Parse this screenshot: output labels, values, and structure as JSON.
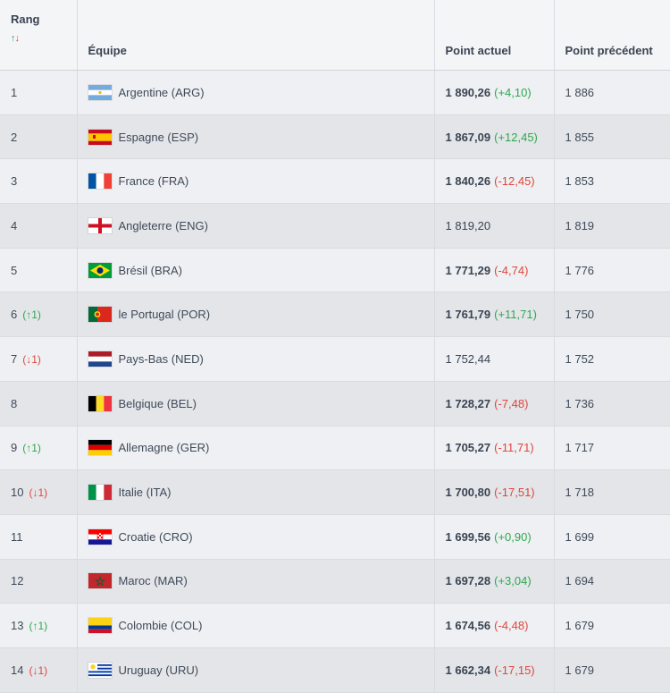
{
  "header": {
    "rank": "Rang",
    "sort_up": "↑",
    "sort_down": "↓",
    "team": "Équipe",
    "current": "Point actuel",
    "previous": "Point précédent"
  },
  "rows": [
    {
      "rank": "1",
      "change": "",
      "team": "Argentine (ARG)",
      "flag": "argentina-flag-icon",
      "points": "1 890,26",
      "delta": "(+4,10)",
      "previous": "1 886"
    },
    {
      "rank": "2",
      "change": "",
      "team": "Espagne (ESP)",
      "flag": "spain-flag-icon",
      "points": "1 867,09",
      "delta": "(+12,45)",
      "previous": "1 855"
    },
    {
      "rank": "3",
      "change": "",
      "team": "France (FRA)",
      "flag": "france-flag-icon",
      "points": "1 840,26",
      "delta": "(-12,45)",
      "previous": "1 853"
    },
    {
      "rank": "4",
      "change": "",
      "team": "Angleterre (ENG)",
      "flag": "england-flag-icon",
      "points": "1 819,20",
      "delta": "",
      "previous": "1 819"
    },
    {
      "rank": "5",
      "change": "",
      "team": "Brésil (BRA)",
      "flag": "brazil-flag-icon",
      "points": "1 771,29",
      "delta": "(-4,74)",
      "previous": "1 776"
    },
    {
      "rank": "6",
      "change": "(↑1)",
      "team": "le Portugal (POR)",
      "flag": "portugal-flag-icon",
      "points": "1 761,79",
      "delta": "(+11,71)",
      "previous": "1 750"
    },
    {
      "rank": "7",
      "change": "(↓1)",
      "team": "Pays-Bas (NED)",
      "flag": "netherlands-flag-icon",
      "points": "1 752,44",
      "delta": "",
      "previous": "1 752"
    },
    {
      "rank": "8",
      "change": "",
      "team": "Belgique (BEL)",
      "flag": "belgium-flag-icon",
      "points": "1 728,27",
      "delta": "(-7,48)",
      "previous": "1 736"
    },
    {
      "rank": "9",
      "change": "(↑1)",
      "team": "Allemagne (GER)",
      "flag": "germany-flag-icon",
      "points": "1 705,27",
      "delta": "(-11,71)",
      "previous": "1 717"
    },
    {
      "rank": "10",
      "change": "(↓1)",
      "team": "Italie (ITA)",
      "flag": "italy-flag-icon",
      "points": "1 700,80",
      "delta": "(-17,51)",
      "previous": "1 718"
    },
    {
      "rank": "11",
      "change": "",
      "team": "Croatie (CRO)",
      "flag": "croatia-flag-icon",
      "points": "1 699,56",
      "delta": "(+0,90)",
      "previous": "1 699"
    },
    {
      "rank": "12",
      "change": "",
      "team": "Maroc (MAR)",
      "flag": "morocco-flag-icon",
      "points": "1 697,28",
      "delta": "(+3,04)",
      "previous": "1 694"
    },
    {
      "rank": "13",
      "change": "(↑1)",
      "team": "Colombie (COL)",
      "flag": "colombia-flag-icon",
      "points": "1 674,56",
      "delta": "(-4,48)",
      "previous": "1 679"
    },
    {
      "rank": "14",
      "change": "(↓1)",
      "team": "Uruguay (URU)",
      "flag": "uruguay-flag-icon",
      "points": "1 662,34",
      "delta": "(-17,15)",
      "previous": "1 679"
    }
  ],
  "colors": {
    "positive": "#2fa84f",
    "negative": "#e0463c"
  }
}
